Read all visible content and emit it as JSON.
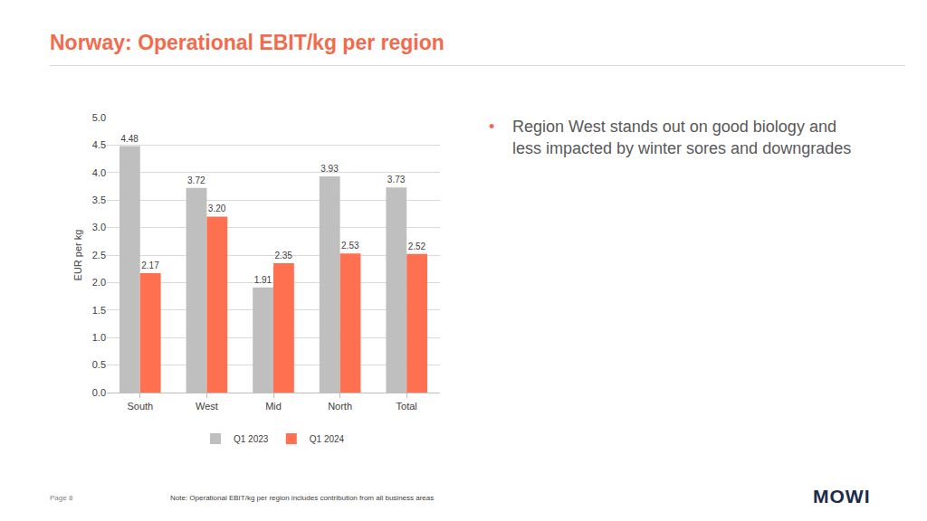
{
  "slide": {
    "title": "Norway: Operational EBIT/kg per region",
    "bullets": [
      "Region West stands out on good biology and less impacted by winter sores and downgrades"
    ],
    "note": "Note: Operational EBIT/kg per region includes contribution from all business areas",
    "page": "Page 8",
    "logo": "MOWI"
  },
  "chart_data": {
    "type": "bar",
    "y_label": "EUR per kg",
    "categories": [
      "South",
      "West",
      "Mid",
      "North",
      "Total"
    ],
    "series": [
      {
        "name": "Q1 2023",
        "color": "#BFBFBF",
        "values": [
          4.48,
          3.72,
          1.91,
          3.93,
          3.73
        ],
        "value_labels": [
          "4.48",
          "3.72",
          "1.91",
          "3.93",
          "3.73"
        ]
      },
      {
        "name": "Q1 2024",
        "color": "#FF7050",
        "values": [
          2.17,
          3.2,
          2.35,
          2.53,
          2.52
        ],
        "value_labels": [
          "2.17",
          "3.20",
          "2.35",
          "2.53",
          "2.52"
        ]
      }
    ],
    "ylim": [
      0,
      5
    ],
    "yticks": [
      {
        "value": 0,
        "label": "0.0"
      },
      0.5,
      {
        "value": 1,
        "label": "1.0"
      },
      1.5,
      {
        "value": 2,
        "label": "2.0"
      },
      2.5,
      {
        "value": 3,
        "label": "3.0"
      },
      3.5,
      {
        "value": 4,
        "label": "4.0"
      },
      4.5,
      {
        "value": 5,
        "label": "5.0"
      }
    ],
    "grid": true,
    "data_labels": true,
    "legend": "bottom"
  }
}
